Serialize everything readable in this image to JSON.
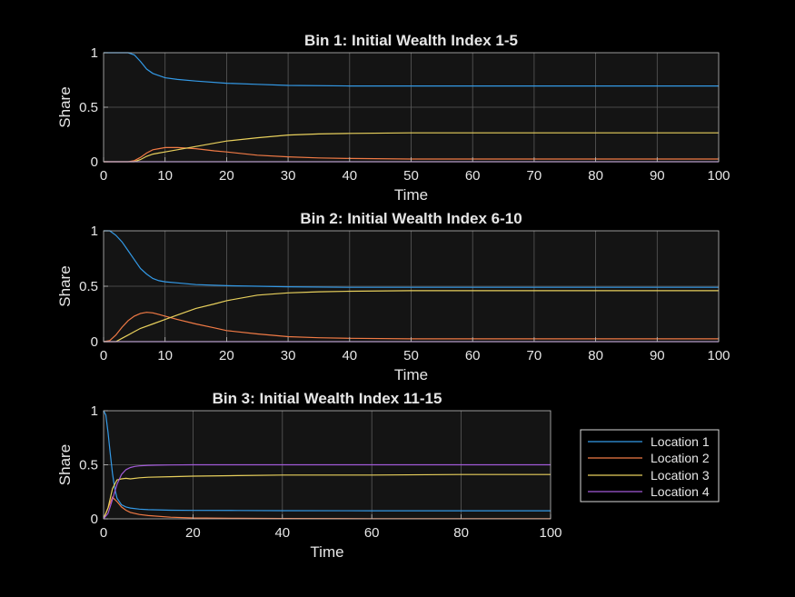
{
  "colors": {
    "figure_bg": "#000000",
    "axes_bg": "#141414",
    "grid": "#5a5a5a",
    "text": "#e6e6e6",
    "series": [
      "#3399e6",
      "#f07a45",
      "#e8d05c",
      "#a25ad8"
    ]
  },
  "legend": {
    "entries": [
      "Location 1",
      "Location 2",
      "Location 3",
      "Location 4"
    ],
    "placement": "right of bottom panel"
  },
  "chart_data": [
    {
      "type": "line",
      "title": "Bin 1: Initial Wealth Index 1-5",
      "xlabel": "Time",
      "ylabel": "Share",
      "xlim": [
        0,
        100
      ],
      "ylim": [
        0,
        1
      ],
      "xticks": [
        "0",
        "10",
        "20",
        "30",
        "40",
        "50",
        "60",
        "70",
        "80",
        "90",
        "100"
      ],
      "yticks": [
        "0",
        "0.5",
        "1"
      ],
      "grid": true,
      "series": [
        {
          "name": "Location 1",
          "x": [
            0,
            3,
            4,
            5,
            6,
            7,
            8,
            9,
            10,
            12,
            15,
            20,
            25,
            30,
            40,
            50,
            60,
            70,
            80,
            90,
            100
          ],
          "values": [
            1,
            1,
            1,
            0.98,
            0.92,
            0.85,
            0.81,
            0.79,
            0.77,
            0.755,
            0.74,
            0.72,
            0.71,
            0.7,
            0.695,
            0.695,
            0.695,
            0.695,
            0.695,
            0.695,
            0.695
          ]
        },
        {
          "name": "Location 2",
          "x": [
            0,
            4,
            5,
            6,
            7,
            8,
            9,
            10,
            12,
            15,
            18,
            20,
            25,
            30,
            35,
            40,
            50,
            60,
            70,
            80,
            90,
            100
          ],
          "values": [
            0,
            0,
            0.01,
            0.04,
            0.08,
            0.11,
            0.12,
            0.13,
            0.13,
            0.12,
            0.1,
            0.09,
            0.06,
            0.045,
            0.035,
            0.03,
            0.025,
            0.025,
            0.025,
            0.025,
            0.025,
            0.025
          ]
        },
        {
          "name": "Location 3",
          "x": [
            0,
            5,
            6,
            7,
            8,
            9,
            10,
            12,
            15,
            20,
            25,
            30,
            35,
            40,
            50,
            60,
            70,
            80,
            90,
            100
          ],
          "values": [
            0,
            0,
            0.02,
            0.05,
            0.07,
            0.08,
            0.09,
            0.11,
            0.14,
            0.19,
            0.22,
            0.245,
            0.255,
            0.26,
            0.265,
            0.265,
            0.265,
            0.265,
            0.265,
            0.265
          ]
        },
        {
          "name": "Location 4",
          "x": [
            0,
            100
          ],
          "values": [
            0,
            0
          ]
        }
      ]
    },
    {
      "type": "line",
      "title": "Bin 2: Initial Wealth Index 6-10",
      "xlabel": "Time",
      "ylabel": "Share",
      "xlim": [
        0,
        100
      ],
      "ylim": [
        0,
        1
      ],
      "xticks": [
        "0",
        "10",
        "20",
        "30",
        "40",
        "50",
        "60",
        "70",
        "80",
        "90",
        "100"
      ],
      "yticks": [
        "0",
        "0.5",
        "1"
      ],
      "grid": true,
      "series": [
        {
          "name": "Location 1",
          "x": [
            0,
            1,
            2,
            3,
            4,
            5,
            6,
            7,
            8,
            9,
            10,
            12,
            15,
            20,
            25,
            30,
            40,
            50,
            60,
            70,
            80,
            90,
            100
          ],
          "values": [
            1,
            1,
            0.96,
            0.9,
            0.82,
            0.74,
            0.66,
            0.61,
            0.57,
            0.55,
            0.54,
            0.53,
            0.515,
            0.505,
            0.5,
            0.495,
            0.49,
            0.49,
            0.49,
            0.49,
            0.49,
            0.49,
            0.49
          ]
        },
        {
          "name": "Location 2",
          "x": [
            0,
            1,
            2,
            3,
            4,
            5,
            6,
            7,
            8,
            9,
            10,
            12,
            15,
            18,
            20,
            25,
            30,
            35,
            40,
            50,
            60,
            70,
            80,
            90,
            100
          ],
          "values": [
            0,
            0.01,
            0.06,
            0.13,
            0.19,
            0.23,
            0.255,
            0.265,
            0.26,
            0.245,
            0.23,
            0.2,
            0.16,
            0.125,
            0.1,
            0.07,
            0.045,
            0.035,
            0.03,
            0.025,
            0.025,
            0.025,
            0.025,
            0.025,
            0.025
          ]
        },
        {
          "name": "Location 3",
          "x": [
            0,
            2,
            3,
            4,
            5,
            6,
            8,
            10,
            12,
            15,
            18,
            20,
            25,
            30,
            35,
            40,
            50,
            60,
            70,
            80,
            90,
            100
          ],
          "values": [
            0,
            0,
            0.03,
            0.06,
            0.09,
            0.12,
            0.16,
            0.2,
            0.24,
            0.3,
            0.34,
            0.37,
            0.42,
            0.44,
            0.45,
            0.455,
            0.46,
            0.46,
            0.46,
            0.46,
            0.46,
            0.46
          ]
        },
        {
          "name": "Location 4",
          "x": [
            0,
            100
          ],
          "values": [
            0,
            0
          ]
        }
      ]
    },
    {
      "type": "line",
      "title": "Bin 3: Initial Wealth Index 11-15",
      "xlabel": "Time",
      "ylabel": "Share",
      "xlim": [
        0,
        100
      ],
      "ylim": [
        0,
        1
      ],
      "xticks": [
        "0",
        "20",
        "40",
        "60",
        "80",
        "100"
      ],
      "yticks": [
        "0",
        "0.5",
        "1"
      ],
      "grid": true,
      "series": [
        {
          "name": "Location 1",
          "x": [
            0,
            0.5,
            1,
            1.5,
            2,
            2.5,
            3,
            4,
            5,
            6,
            8,
            10,
            15,
            20,
            30,
            40,
            60,
            80,
            100
          ],
          "values": [
            1,
            0.96,
            0.8,
            0.6,
            0.42,
            0.28,
            0.19,
            0.13,
            0.11,
            0.1,
            0.09,
            0.085,
            0.08,
            0.078,
            0.077,
            0.076,
            0.075,
            0.075,
            0.075
          ]
        },
        {
          "name": "Location 2",
          "x": [
            0,
            1,
            2,
            3,
            4,
            5,
            6,
            8,
            10,
            15,
            20,
            30,
            40,
            60,
            80,
            100
          ],
          "values": [
            0,
            0.1,
            0.2,
            0.16,
            0.11,
            0.08,
            0.06,
            0.04,
            0.03,
            0.015,
            0.008,
            0.005,
            0.003,
            0.002,
            0.002,
            0.002
          ]
        },
        {
          "name": "Location 3",
          "x": [
            0,
            1,
            2,
            3,
            4,
            5,
            6,
            8,
            10,
            15,
            20,
            30,
            40,
            60,
            80,
            100
          ],
          "values": [
            0,
            0.1,
            0.28,
            0.36,
            0.37,
            0.375,
            0.37,
            0.38,
            0.385,
            0.39,
            0.395,
            0.4,
            0.405,
            0.405,
            0.41,
            0.41
          ]
        },
        {
          "name": "Location 4",
          "x": [
            0,
            1,
            2,
            3,
            4,
            5,
            6,
            7,
            8,
            10,
            12,
            15,
            20,
            30,
            40,
            60,
            80,
            100
          ],
          "values": [
            0,
            0.05,
            0.18,
            0.32,
            0.41,
            0.455,
            0.475,
            0.485,
            0.49,
            0.495,
            0.497,
            0.498,
            0.5,
            0.5,
            0.5,
            0.5,
            0.5,
            0.5
          ]
        }
      ]
    }
  ]
}
